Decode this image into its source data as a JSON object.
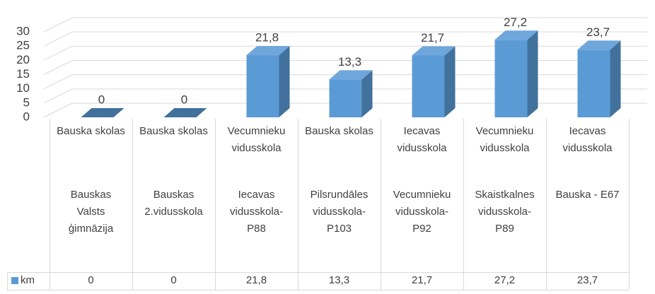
{
  "chart_data": {
    "type": "bar3d",
    "categories": [
      [
        "Bauska skolas",
        "Bauskas Valsts ģimnāzija"
      ],
      [
        "Bauska skolas",
        "Bauskas 2.vidusskola"
      ],
      [
        "Vecumnieku vidusskola",
        "Iecavas vidusskola-P88"
      ],
      [
        "Bauska skolas",
        "Pilsrundāles vidusskola-P103"
      ],
      [
        "Iecavas vidusskola",
        "Vecumnieku vidusskola-P92"
      ],
      [
        "Vecumnieku vidusskola",
        "Skaistkalnes vidusskola-P89"
      ],
      [
        "Iecavas vidusskola",
        "Bauska - E67"
      ]
    ],
    "series": [
      {
        "name": "km",
        "color": "#5b9bd5",
        "values": [
          0,
          0,
          21.8,
          13.3,
          21.7,
          27.2,
          23.7
        ],
        "value_labels": [
          "0",
          "0",
          "21,8",
          "13,3",
          "21,7",
          "27,2",
          "23,7"
        ]
      }
    ],
    "ylim": [
      0,
      30
    ],
    "yticks": [
      0,
      5,
      10,
      15,
      20,
      25,
      30
    ],
    "grid": true,
    "legend": "table"
  }
}
